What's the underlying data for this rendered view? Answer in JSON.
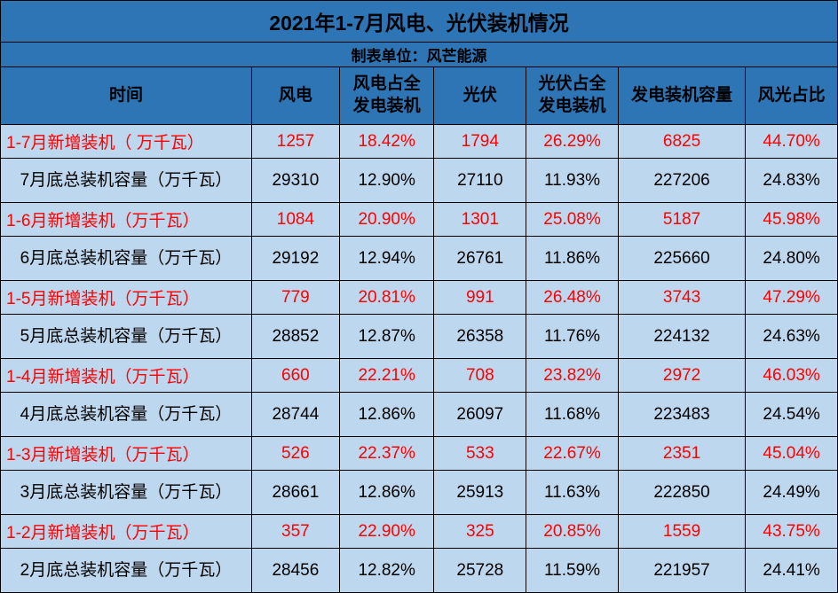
{
  "colors": {
    "header_bg": "#2E75B6",
    "body_bg": "#BDD7EE",
    "border": "#000000",
    "new_row_text": "#FF0000",
    "total_row_text": "#000000",
    "title_text": "#000000"
  },
  "chart_data": {
    "type": "table",
    "title": "2021年1-7月风电、光伏装机情况",
    "subtitle": "制表单位：风芒能源",
    "columns": [
      "时间",
      "风电",
      "风电占全\n发电装机",
      "光伏",
      "光伏占全\n发电装机",
      "发电装机容量",
      "风光占比"
    ],
    "rows": [
      {
        "type": "new",
        "cells": [
          "1-7月新增装机（ 万千瓦）",
          "1257",
          "18.42%",
          "1794",
          "26.29%",
          "6825",
          "44.70%"
        ]
      },
      {
        "type": "total",
        "cells": [
          "7月底总装机容量（万千瓦）",
          "29310",
          "12.90%",
          "27110",
          "11.93%",
          "227206",
          "24.83%"
        ]
      },
      {
        "type": "new",
        "cells": [
          "1-6月新增装机（万千瓦）",
          "1084",
          "20.90%",
          "1301",
          "25.08%",
          "5187",
          "45.98%"
        ]
      },
      {
        "type": "total",
        "cells": [
          "6月底总装机容量（万千瓦）",
          "29192",
          "12.94%",
          "26761",
          "11.86%",
          "225660",
          "24.80%"
        ]
      },
      {
        "type": "new",
        "cells": [
          "1-5月新增装机（万千瓦）",
          "779",
          "20.81%",
          "991",
          "26.48%",
          "3743",
          "47.29%"
        ]
      },
      {
        "type": "total",
        "cells": [
          "5月底总装机容量（万千瓦）",
          "28852",
          "12.87%",
          "26358",
          "11.76%",
          "224132",
          "24.63%"
        ]
      },
      {
        "type": "new",
        "cells": [
          "1-4月新增装机（万千瓦）",
          "660",
          "22.21%",
          "708",
          "23.82%",
          "2972",
          "46.03%"
        ]
      },
      {
        "type": "total",
        "cells": [
          "4月底总装机容量（万千瓦）",
          "28744",
          "12.86%",
          "26097",
          "11.68%",
          "223483",
          "24.54%"
        ]
      },
      {
        "type": "new",
        "cells": [
          "1-3月新增装机（万千瓦）",
          "526",
          "22.37%",
          "533",
          "22.67%",
          "2351",
          "45.04%"
        ]
      },
      {
        "type": "total",
        "cells": [
          "3月底总装机容量（万千瓦）",
          "28661",
          "12.86%",
          "25913",
          "11.63%",
          "222850",
          "24.49%"
        ]
      },
      {
        "type": "new",
        "cells": [
          "1-2月新增装机（万千瓦）",
          "357",
          "22.90%",
          "325",
          "20.85%",
          "1559",
          "43.75%"
        ]
      },
      {
        "type": "total",
        "cells": [
          "2月底总装机容量（万千瓦）",
          "28456",
          "12.82%",
          "25728",
          "11.59%",
          "221957",
          "24.41%"
        ]
      }
    ]
  }
}
